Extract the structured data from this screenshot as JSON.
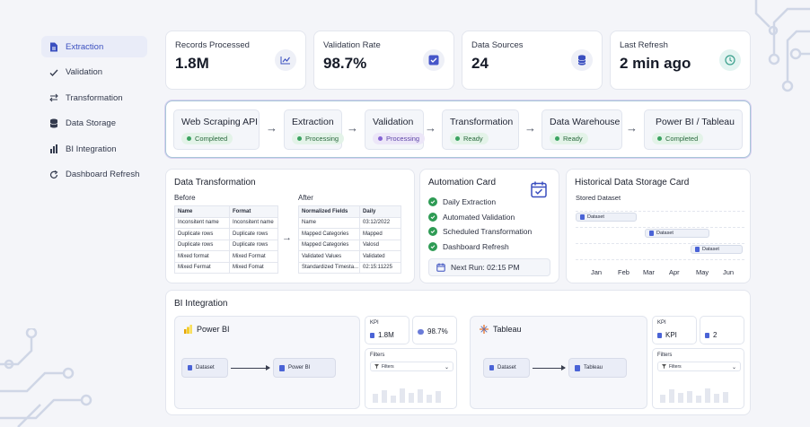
{
  "sidebar": {
    "items": [
      {
        "label": "Extraction",
        "icon": "file-icon",
        "active": true
      },
      {
        "label": "Validation",
        "icon": "check-icon"
      },
      {
        "label": "Transformation",
        "icon": "swap-icon"
      },
      {
        "label": "Data Storage",
        "icon": "database-icon"
      },
      {
        "label": "BI Integration",
        "icon": "bar-chart-icon"
      },
      {
        "label": "Dashboard Refresh",
        "icon": "refresh-icon"
      }
    ]
  },
  "stats": [
    {
      "label": "Records Processed",
      "value": "1.8M",
      "icon": "trend-chart-icon"
    },
    {
      "label": "Validation Rate",
      "value": "98.7%",
      "icon": "checkbox-icon"
    },
    {
      "label": "Data Sources",
      "value": "24",
      "icon": "database-icon"
    },
    {
      "label": "Last Refresh",
      "value": "2 min ago",
      "icon": "clock-icon"
    }
  ],
  "pipeline": [
    {
      "title": "Web Scraping API",
      "status": "Completed",
      "color": "green"
    },
    {
      "title": "Extraction",
      "status": "Processing",
      "color": "green"
    },
    {
      "title": "Validation",
      "status": "Processing",
      "color": "purple"
    },
    {
      "title": "Transformation",
      "status": "Ready",
      "color": "green"
    },
    {
      "title": "Data Warehouse",
      "status": "Ready",
      "color": "green"
    },
    {
      "title": "Power BI / Tableau",
      "status": "Completed",
      "color": "green"
    }
  ],
  "data_transformation": {
    "title": "Data Transformation",
    "before_label": "Before",
    "after_label": "After",
    "before_headers": [
      "Name",
      "Format"
    ],
    "before_rows": [
      [
        "Inconsitent name",
        "Inconsitent name"
      ],
      [
        "Duplicate rows",
        "Duplicate rows"
      ],
      [
        "Duplicate rows",
        "Duplicate rows"
      ],
      [
        "Mixed format",
        "Mixed Format"
      ],
      [
        "Mixed Fermat",
        "Mixed Fomat"
      ]
    ],
    "after_headers": [
      "Normalized Fields",
      "Daily"
    ],
    "after_rows": [
      [
        "Name",
        "03:12/2022"
      ],
      [
        "Mapped Categories",
        "Mapped"
      ],
      [
        "Mapped Categories",
        "Valosd"
      ],
      [
        "Validated Values",
        "Validated"
      ],
      [
        "Standardized Timesta...",
        "02:15:11225"
      ]
    ]
  },
  "automation": {
    "title": "Automation Card",
    "items": [
      "Daily Extraction",
      "Automated Validation",
      "Scheduled Transformation",
      "Dashboard Refresh"
    ],
    "next_run": "Next Run: 02:15 PM"
  },
  "historical": {
    "title": "Historical Data Storage Card",
    "subtitle": "Stored Dataset",
    "bar_label": "Dataset",
    "months": [
      "Jan",
      "Feb",
      "Mar",
      "Apr",
      "May",
      "Jun"
    ]
  },
  "bi_integration": {
    "title": "BI Integration",
    "powerbi": {
      "title": "Power BI",
      "source": "Dataset",
      "target": "Power BI",
      "kpi_label": "KPI",
      "kpi_value1": "1.8M",
      "kpi_value2": "98.7%",
      "filters_label": "Filters",
      "filter_select": "Filters"
    },
    "tableau": {
      "title": "Tableau",
      "source": "Dataset",
      "target": "Tableau",
      "kpi_label": "KPI",
      "kpi_value1": "KPI",
      "kpi_value2": "2",
      "filters_label": "Filters",
      "filter_select": "Filters"
    }
  },
  "colors": {
    "accent": "#3a4fbf",
    "green": "#2e9b54",
    "purple": "#8564d4",
    "powerbi_yellow": "#f2c811"
  }
}
